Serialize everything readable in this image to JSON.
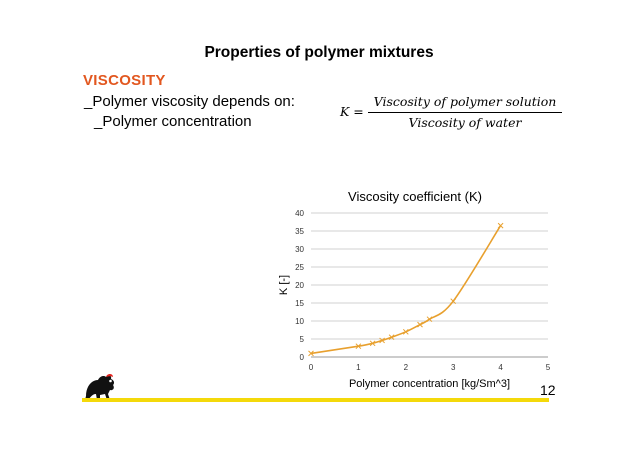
{
  "slide": {
    "title": "Properties of polymer mixtures",
    "section_heading": "VISCOSITY",
    "bullets": [
      "_Polymer viscosity depends on:",
      "_Polymer concentration"
    ],
    "page_number": "12",
    "accent_color": "#e2571f",
    "brand_bar_color": "#f4d90a"
  },
  "formula": {
    "lhs": "K =",
    "numerator": "Viscosity of polymer solution",
    "denominator": "Viscosity of water"
  },
  "chart_data": {
    "type": "scatter",
    "title": "Viscosity coefficient (K)",
    "xlabel": "Polymer concentration [kg/Sm^3]",
    "ylabel": "K [-]",
    "xlim": [
      0,
      5
    ],
    "ylim": [
      0,
      40
    ],
    "xticks": [
      "0",
      "1",
      "2",
      "3",
      "4",
      "5"
    ],
    "yticks": [
      "0",
      "5",
      "10",
      "15",
      "20",
      "25",
      "30",
      "35",
      "40"
    ],
    "grid": true,
    "line_color": "#e8a02e",
    "series": [
      {
        "x": [
          0,
          1.0,
          1.3,
          1.5,
          1.7,
          2.0,
          2.3,
          2.5,
          3.0,
          4.0
        ],
        "y": [
          1,
          3,
          3.8,
          4.6,
          5.5,
          7,
          9,
          10.5,
          15.5,
          36.5
        ]
      }
    ]
  }
}
